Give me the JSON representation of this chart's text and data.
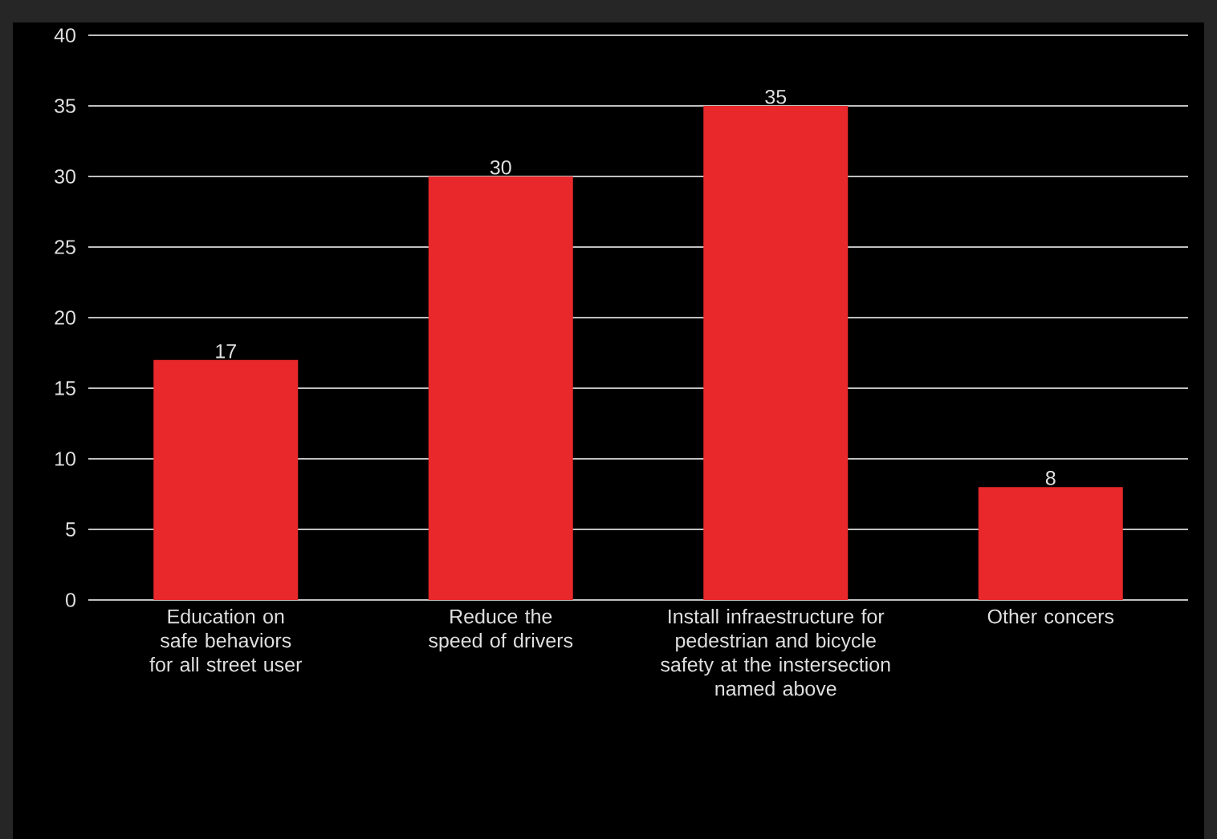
{
  "chart_data": {
    "type": "bar",
    "categories": [
      "Education on safe behaviors for all street user",
      "Reduce the speed of drivers",
      "Install infraestructure for pedestrian and bicycle safety at the instersection named above",
      "Other concers"
    ],
    "values": [
      17,
      30,
      35,
      8
    ],
    "color": "#e8282a",
    "ylim": [
      0,
      40
    ],
    "yticks": [
      0,
      5,
      10,
      15,
      20,
      25,
      30,
      35,
      40
    ],
    "grid": "y",
    "data_labels": true
  }
}
